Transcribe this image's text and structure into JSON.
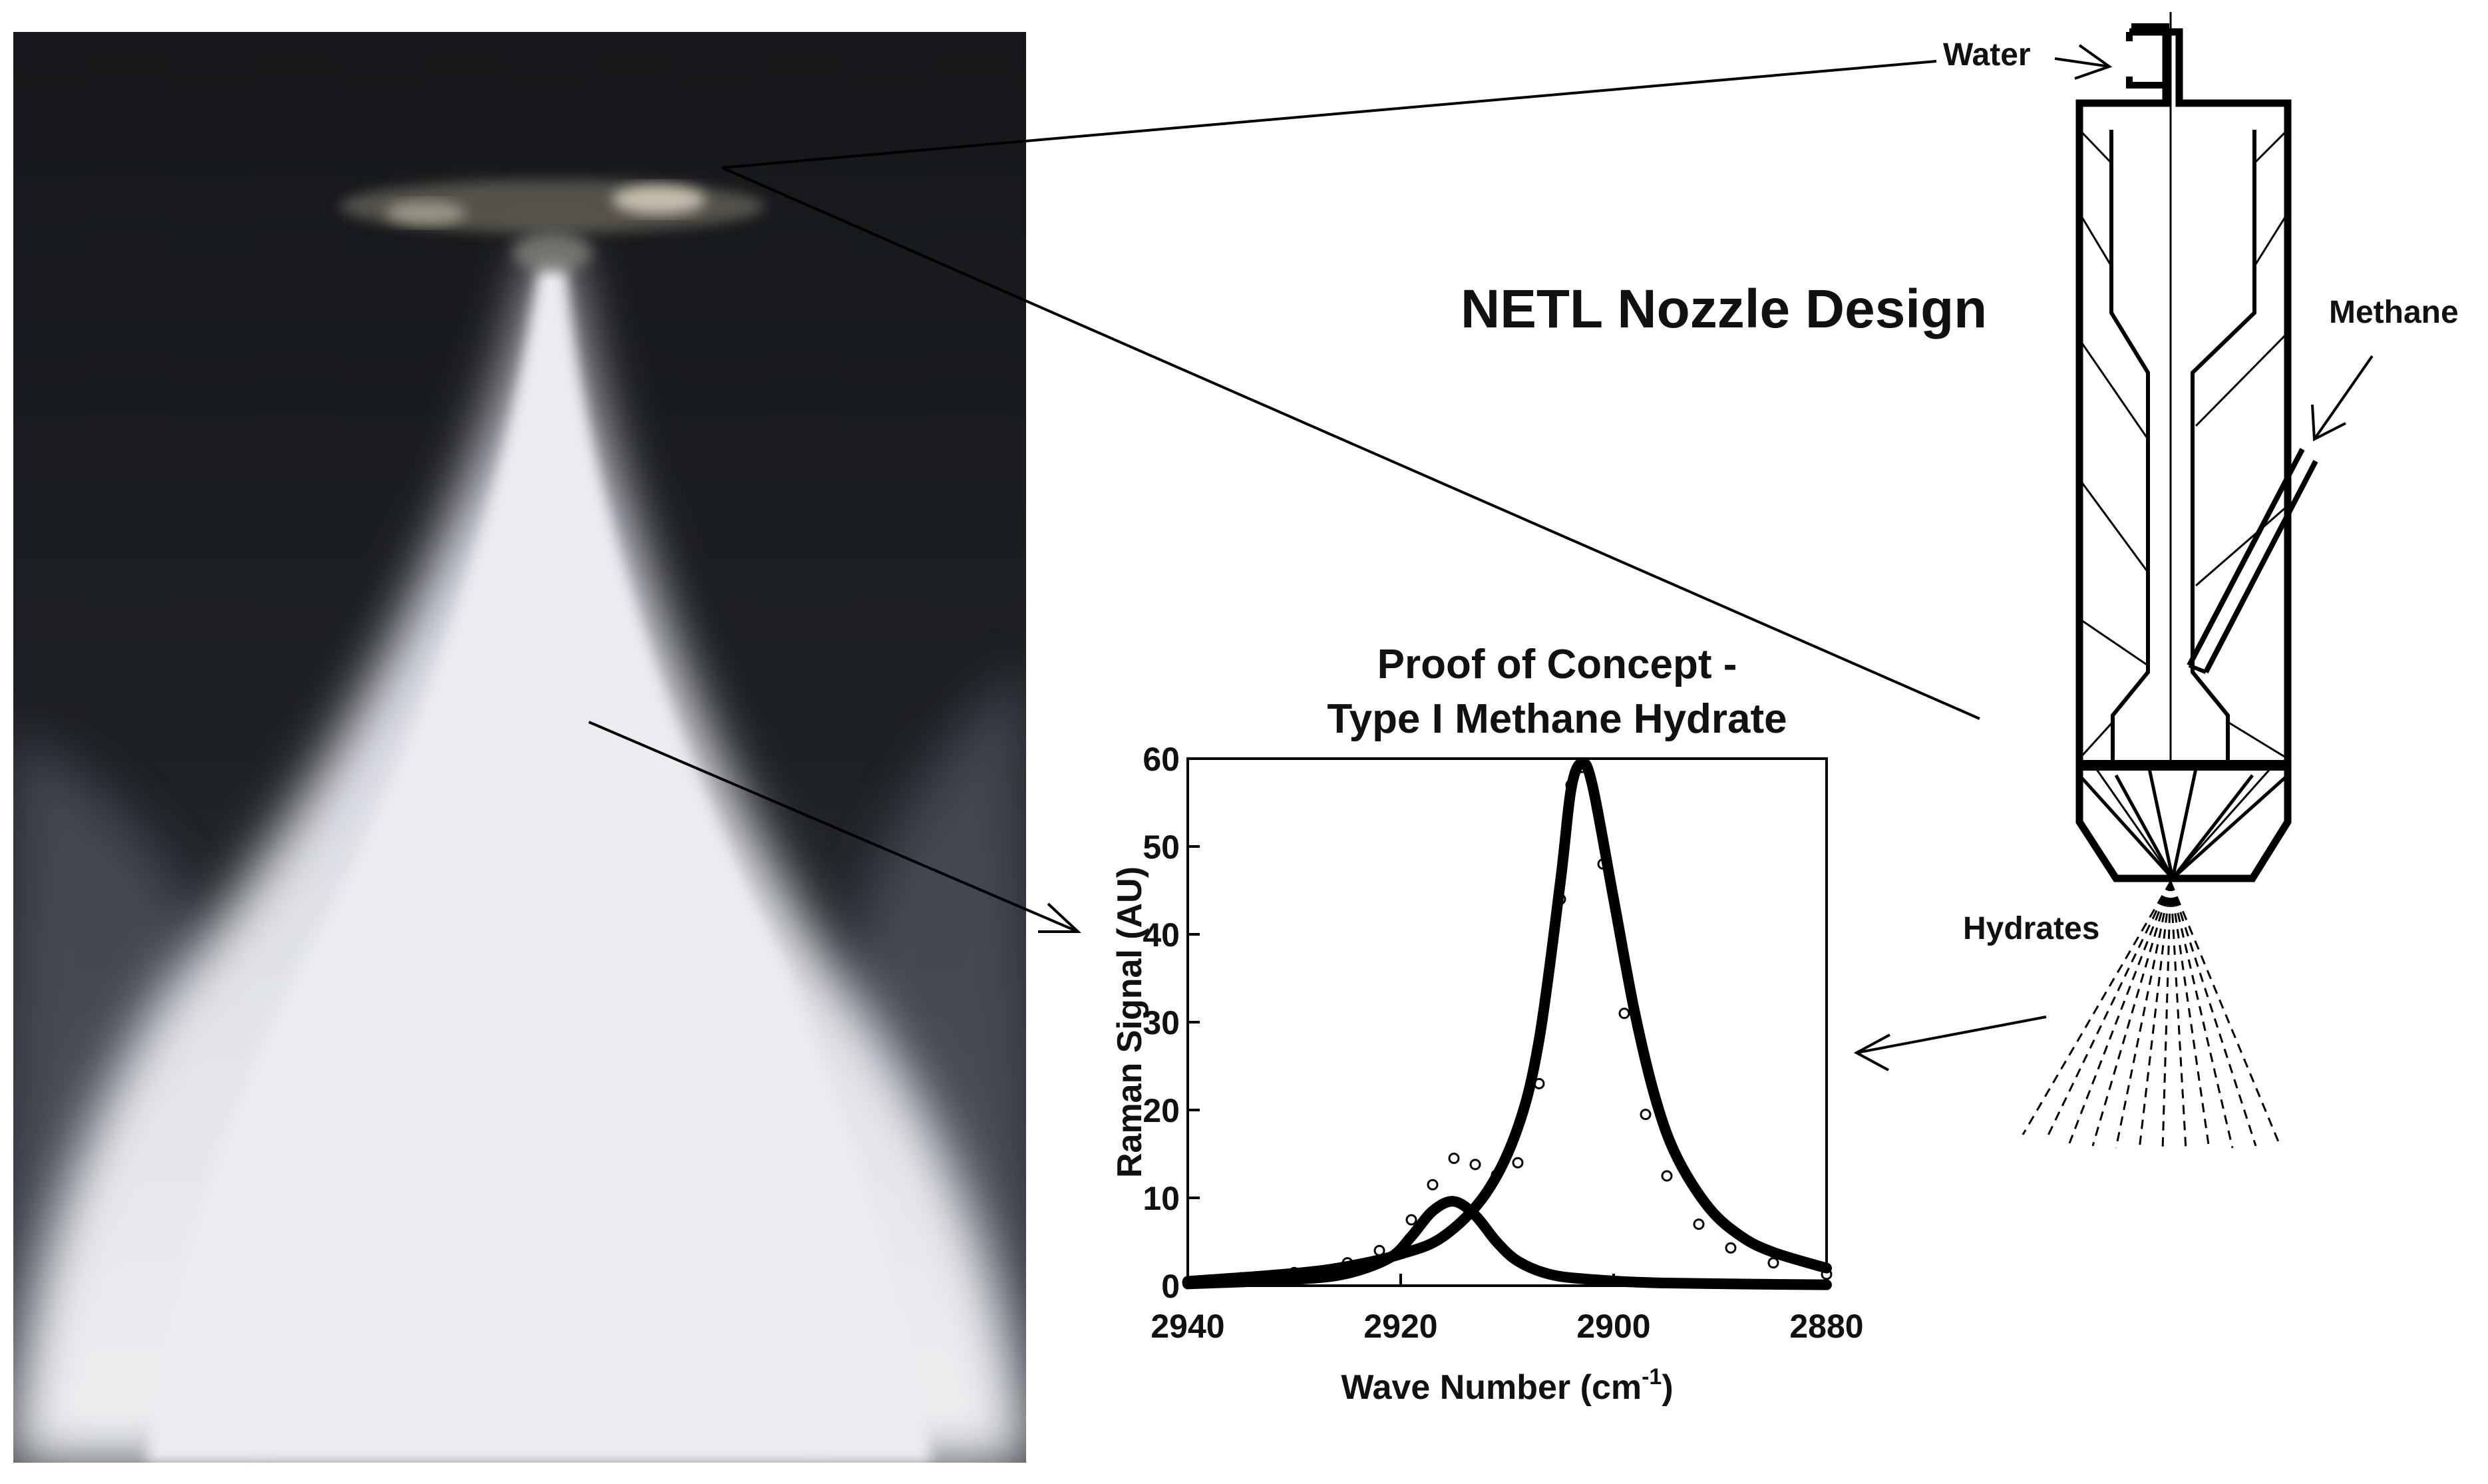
{
  "diagram": {
    "title": "NETL Nozzle Design",
    "labels": {
      "water": "Water",
      "methane": "Methane",
      "hydrates": "Hydrates"
    }
  },
  "photo": {
    "subject": "hydrate-spray-photo"
  },
  "chart_data": {
    "type": "line",
    "title": "Proof of Concept  -",
    "subtitle": "Type I Methane Hydrate",
    "xlabel": "Wave Number (cm",
    "xlabel_sup": "-1",
    "xlabel_close": ")",
    "ylabel": "Raman Signal (AU)",
    "xlim": [
      2940,
      2880
    ],
    "ylim": [
      0,
      60
    ],
    "x_ticks": [
      "2940",
      "2920",
      "2900",
      "2880"
    ],
    "y_ticks": [
      "0",
      "10",
      "20",
      "30",
      "40",
      "50",
      "60"
    ],
    "grid": false,
    "series": [
      {
        "style": "open-circles",
        "x": [
          2940,
          2935,
          2930,
          2925,
          2922,
          2919,
          2917,
          2915,
          2913,
          2911,
          2909,
          2907,
          2905,
          2904,
          2903,
          2901,
          2899,
          2897,
          2895,
          2892,
          2889,
          2885,
          2880
        ],
        "values": [
          0.4,
          0.9,
          1.5,
          2.6,
          4.0,
          7.5,
          11.5,
          14.5,
          13.8,
          12.6,
          14.0,
          23.0,
          44.0,
          57.0,
          59.0,
          48.0,
          31.0,
          19.5,
          12.5,
          7.0,
          4.3,
          2.6,
          1.3
        ]
      },
      {
        "style": "solid-peak-2904",
        "x": [
          2940,
          2930,
          2925,
          2920,
          2916,
          2912,
          2909,
          2907,
          2905,
          2904,
          2903,
          2902,
          2900,
          2898,
          2896,
          2894,
          2891,
          2888,
          2885,
          2880
        ],
        "values": [
          0.5,
          1.4,
          2.2,
          3.6,
          5.6,
          10.5,
          18.0,
          28.0,
          46.0,
          56.5,
          59.5,
          57.0,
          44.0,
          31.0,
          21.0,
          14.5,
          8.8,
          5.6,
          3.8,
          2.0
        ]
      },
      {
        "style": "solid-peak-2915",
        "x": [
          2940,
          2930,
          2925,
          2921,
          2919,
          2917,
          2915,
          2913,
          2911,
          2909,
          2906,
          2902,
          2895,
          2880
        ],
        "values": [
          0.2,
          0.7,
          1.4,
          3.2,
          5.6,
          8.5,
          9.6,
          8.0,
          5.0,
          2.8,
          1.3,
          0.7,
          0.3,
          0.1
        ]
      }
    ]
  }
}
